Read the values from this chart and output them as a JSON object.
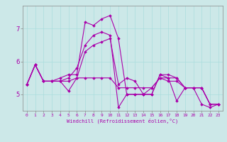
{
  "title": "",
  "xlabel": "Windchill (Refroidissement éolien,°C)",
  "ylabel": "",
  "bg_color": "#cce8e8",
  "line_color": "#aa00aa",
  "x": [
    0,
    1,
    2,
    3,
    4,
    5,
    6,
    7,
    8,
    9,
    10,
    11,
    12,
    13,
    14,
    15,
    16,
    17,
    18,
    19,
    20,
    21,
    22,
    23
  ],
  "series": [
    [
      5.3,
      5.9,
      5.4,
      5.4,
      5.4,
      5.5,
      5.8,
      6.5,
      6.8,
      6.9,
      6.8,
      4.6,
      5.0,
      5.0,
      5.0,
      5.0,
      5.6,
      5.5,
      4.8,
      5.2,
      5.2,
      4.7,
      4.6,
      4.7
    ],
    [
      5.3,
      5.9,
      5.4,
      5.4,
      5.5,
      5.6,
      5.6,
      7.2,
      7.1,
      7.3,
      7.4,
      6.7,
      5.0,
      5.0,
      5.0,
      5.0,
      5.6,
      5.6,
      5.5,
      5.2,
      5.2,
      5.2,
      4.7,
      4.7
    ],
    [
      5.3,
      5.9,
      5.4,
      5.4,
      5.4,
      5.1,
      5.5,
      6.3,
      6.5,
      6.6,
      6.7,
      5.3,
      5.5,
      5.4,
      5.0,
      5.2,
      5.5,
      5.4,
      5.4,
      5.2,
      5.2,
      5.2,
      4.7,
      4.7
    ],
    [
      5.3,
      5.9,
      5.4,
      5.4,
      5.4,
      5.4,
      5.5,
      5.5,
      5.5,
      5.5,
      5.5,
      5.2,
      5.2,
      5.2,
      5.2,
      5.2,
      5.5,
      5.5,
      5.5,
      5.2,
      5.2,
      5.2,
      4.7,
      4.7
    ]
  ],
  "ylim": [
    4.5,
    7.7
  ],
  "yticks": [
    5,
    6,
    7
  ],
  "xticks": [
    0,
    1,
    2,
    3,
    4,
    5,
    6,
    7,
    8,
    9,
    10,
    11,
    12,
    13,
    14,
    15,
    16,
    17,
    18,
    19,
    20,
    21,
    22,
    23
  ],
  "marker": "D",
  "markersize": 1.8,
  "linewidth": 0.8
}
